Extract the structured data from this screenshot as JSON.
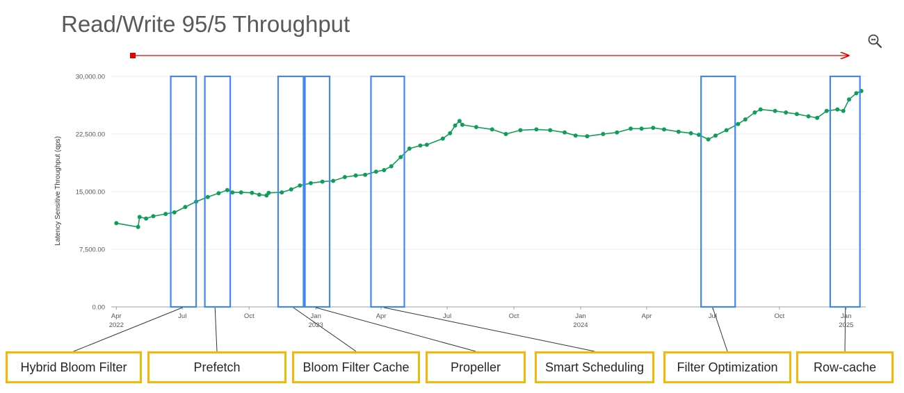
{
  "title": "Read/Write 95/5 Throughput",
  "zoom_icon": "zoom-reset-icon",
  "colors": {
    "series": "#0f9d58",
    "markers": "#4285f4",
    "callout": "#f5b80a",
    "arrow": "#e00000"
  },
  "chart_data": {
    "type": "line",
    "title": "Read/Write 95/5 Throughput",
    "ylabel": "Latency Sensitive Throughput (qps)",
    "xlabel": "",
    "ylim": [
      0,
      30000
    ],
    "yticks": [
      "0.00",
      "7,500.00",
      "15,000.00",
      "22,500.00",
      "30,000.00"
    ],
    "xlim": [
      "2022-03-25",
      "2025-01-28"
    ],
    "xticks": [
      {
        "date": "2022-04-01",
        "label": "Apr",
        "sub": "2022"
      },
      {
        "date": "2022-07-01",
        "label": "Jul",
        "sub": ""
      },
      {
        "date": "2022-10-01",
        "label": "Oct",
        "sub": ""
      },
      {
        "date": "2023-01-01",
        "label": "Jan",
        "sub": "2023"
      },
      {
        "date": "2023-04-01",
        "label": "Apr",
        "sub": ""
      },
      {
        "date": "2023-07-01",
        "label": "Jul",
        "sub": ""
      },
      {
        "date": "2023-10-01",
        "label": "Oct",
        "sub": ""
      },
      {
        "date": "2024-01-01",
        "label": "Jan",
        "sub": "2024"
      },
      {
        "date": "2024-04-01",
        "label": "Apr",
        "sub": ""
      },
      {
        "date": "2024-07-01",
        "label": "Jul",
        "sub": ""
      },
      {
        "date": "2024-10-01",
        "label": "Oct",
        "sub": ""
      },
      {
        "date": "2025-01-01",
        "label": "Jan",
        "sub": "2025"
      }
    ],
    "grid": true,
    "series": [
      {
        "points": [
          [
            "2022-04-01",
            10900
          ],
          [
            "2022-05-01",
            10400
          ],
          [
            "2022-05-03",
            11700
          ],
          [
            "2022-05-12",
            11500
          ],
          [
            "2022-05-22",
            11800
          ],
          [
            "2022-06-08",
            12100
          ],
          [
            "2022-06-20",
            12300
          ],
          [
            "2022-07-05",
            13000
          ],
          [
            "2022-07-20",
            13700
          ],
          [
            "2022-08-05",
            14300
          ],
          [
            "2022-08-20",
            14800
          ],
          [
            "2022-09-01",
            15200
          ],
          [
            "2022-09-08",
            14900
          ],
          [
            "2022-09-20",
            14900
          ],
          [
            "2022-10-05",
            14850
          ],
          [
            "2022-10-15",
            14600
          ],
          [
            "2022-10-25",
            14500
          ],
          [
            "2022-10-28",
            14850
          ],
          [
            "2022-11-15",
            14900
          ],
          [
            "2022-11-28",
            15300
          ],
          [
            "2022-12-10",
            15800
          ],
          [
            "2022-12-25",
            16100
          ],
          [
            "2023-01-10",
            16300
          ],
          [
            "2023-01-25",
            16400
          ],
          [
            "2023-02-10",
            16900
          ],
          [
            "2023-02-25",
            17100
          ],
          [
            "2023-03-10",
            17200
          ],
          [
            "2023-03-25",
            17600
          ],
          [
            "2023-04-05",
            17800
          ],
          [
            "2023-04-15",
            18300
          ],
          [
            "2023-04-28",
            19500
          ],
          [
            "2023-05-10",
            20600
          ],
          [
            "2023-05-25",
            21000
          ],
          [
            "2023-06-03",
            21100
          ],
          [
            "2023-06-25",
            21900
          ],
          [
            "2023-07-05",
            22600
          ],
          [
            "2023-07-12",
            23600
          ],
          [
            "2023-07-18",
            24200
          ],
          [
            "2023-07-22",
            23700
          ],
          [
            "2023-08-10",
            23400
          ],
          [
            "2023-09-01",
            23100
          ],
          [
            "2023-09-20",
            22500
          ],
          [
            "2023-10-10",
            23000
          ],
          [
            "2023-11-01",
            23100
          ],
          [
            "2023-11-20",
            23000
          ],
          [
            "2023-12-10",
            22700
          ],
          [
            "2023-12-25",
            22300
          ],
          [
            "2024-01-10",
            22200
          ],
          [
            "2024-02-01",
            22500
          ],
          [
            "2024-02-20",
            22700
          ],
          [
            "2024-03-10",
            23200
          ],
          [
            "2024-03-25",
            23200
          ],
          [
            "2024-04-10",
            23300
          ],
          [
            "2024-04-25",
            23100
          ],
          [
            "2024-05-15",
            22800
          ],
          [
            "2024-06-01",
            22600
          ],
          [
            "2024-06-12",
            22400
          ],
          [
            "2024-06-25",
            21800
          ],
          [
            "2024-07-05",
            22300
          ],
          [
            "2024-07-20",
            23000
          ],
          [
            "2024-08-05",
            23800
          ],
          [
            "2024-08-15",
            24400
          ],
          [
            "2024-08-28",
            25300
          ],
          [
            "2024-09-05",
            25700
          ],
          [
            "2024-09-25",
            25500
          ],
          [
            "2024-10-10",
            25300
          ],
          [
            "2024-10-25",
            25100
          ],
          [
            "2024-11-10",
            24800
          ],
          [
            "2024-11-22",
            24600
          ],
          [
            "2024-12-05",
            25500
          ],
          [
            "2024-12-20",
            25700
          ],
          [
            "2024-12-28",
            25500
          ],
          [
            "2025-01-05",
            27000
          ],
          [
            "2025-01-15",
            27800
          ],
          [
            "2025-01-22",
            28100
          ]
        ]
      }
    ]
  },
  "highlights": [
    {
      "start": "2022-06-15",
      "end": "2022-07-20"
    },
    {
      "start": "2022-08-01",
      "end": "2022-09-05"
    },
    {
      "start": "2022-11-10",
      "end": "2022-12-15"
    },
    {
      "start": "2022-12-17",
      "end": "2023-01-20"
    },
    {
      "start": "2023-03-18",
      "end": "2023-05-03"
    },
    {
      "start": "2024-06-15",
      "end": "2024-08-01"
    },
    {
      "start": "2024-12-10",
      "end": "2025-01-20"
    }
  ],
  "features": [
    {
      "label": "Hybrid Bloom Filter",
      "anchor": "2022-07-01"
    },
    {
      "label": "Prefetch",
      "anchor": "2022-08-15"
    },
    {
      "label": "Bloom Filter Cache",
      "anchor": "2022-12-01"
    },
    {
      "label": "Propeller",
      "anchor": "2023-01-01"
    },
    {
      "label": "Smart Scheduling",
      "anchor": "2023-04-05"
    },
    {
      "label": "Filter Optimization",
      "anchor": "2024-07-01"
    },
    {
      "label": "Row-cache",
      "anchor": "2024-12-31"
    }
  ]
}
